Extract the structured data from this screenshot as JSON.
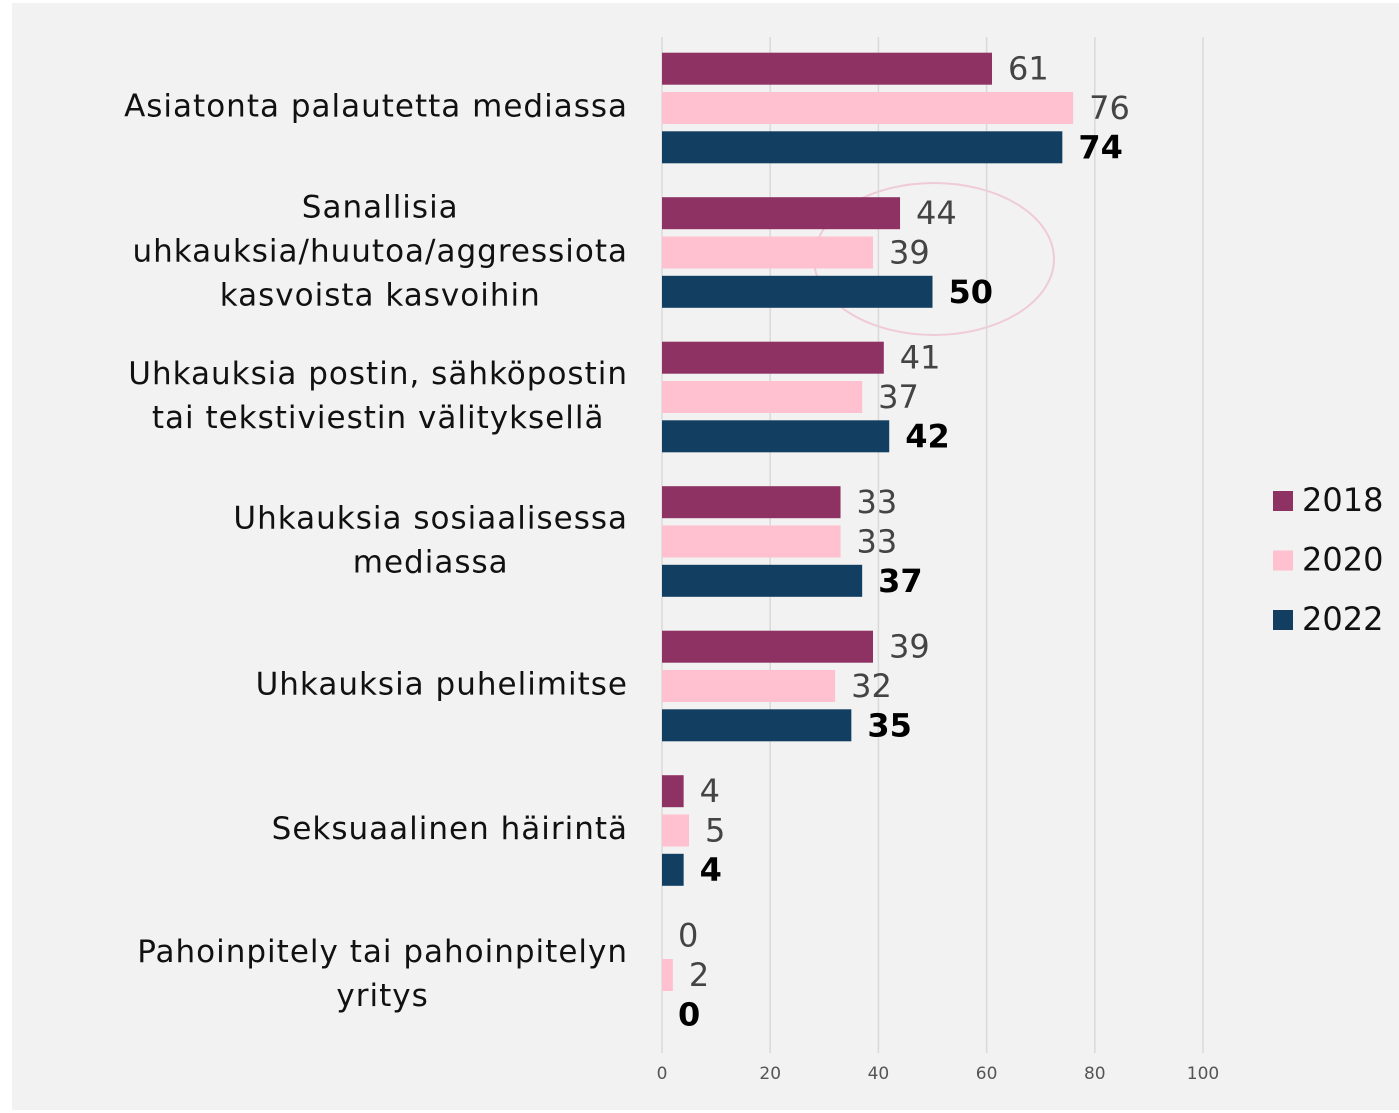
{
  "chart_data": {
    "type": "bar",
    "orientation": "horizontal",
    "categories": [
      "Asiatonta palautetta mediassa",
      "Sanallisia\nuhkauksia/huutoa/aggressiota\nkasvoista kasvoihin",
      "Uhkauksia postin, sähköpostin\ntai tekstiviestin välityksellä",
      "Uhkauksia sosiaalisessa\nmediassa",
      "Uhkauksia puhelimitse",
      "Seksuaalinen häirintä",
      "Pahoinpitely tai pahoinpitelyn\nyritys"
    ],
    "series": [
      {
        "name": "2018",
        "color": "#8e3163",
        "values": [
          61,
          44,
          41,
          33,
          39,
          4,
          0
        ]
      },
      {
        "name": "2020",
        "color": "#ffc0cf",
        "values": [
          76,
          39,
          37,
          33,
          32,
          5,
          2
        ]
      },
      {
        "name": "2022",
        "color": "#123f61",
        "values": [
          74,
          50,
          42,
          37,
          35,
          4,
          0
        ]
      }
    ],
    "xlim": [
      0,
      100
    ],
    "xticks": [
      0,
      20,
      40,
      60,
      80,
      100
    ],
    "grid": true,
    "legend": "right"
  }
}
